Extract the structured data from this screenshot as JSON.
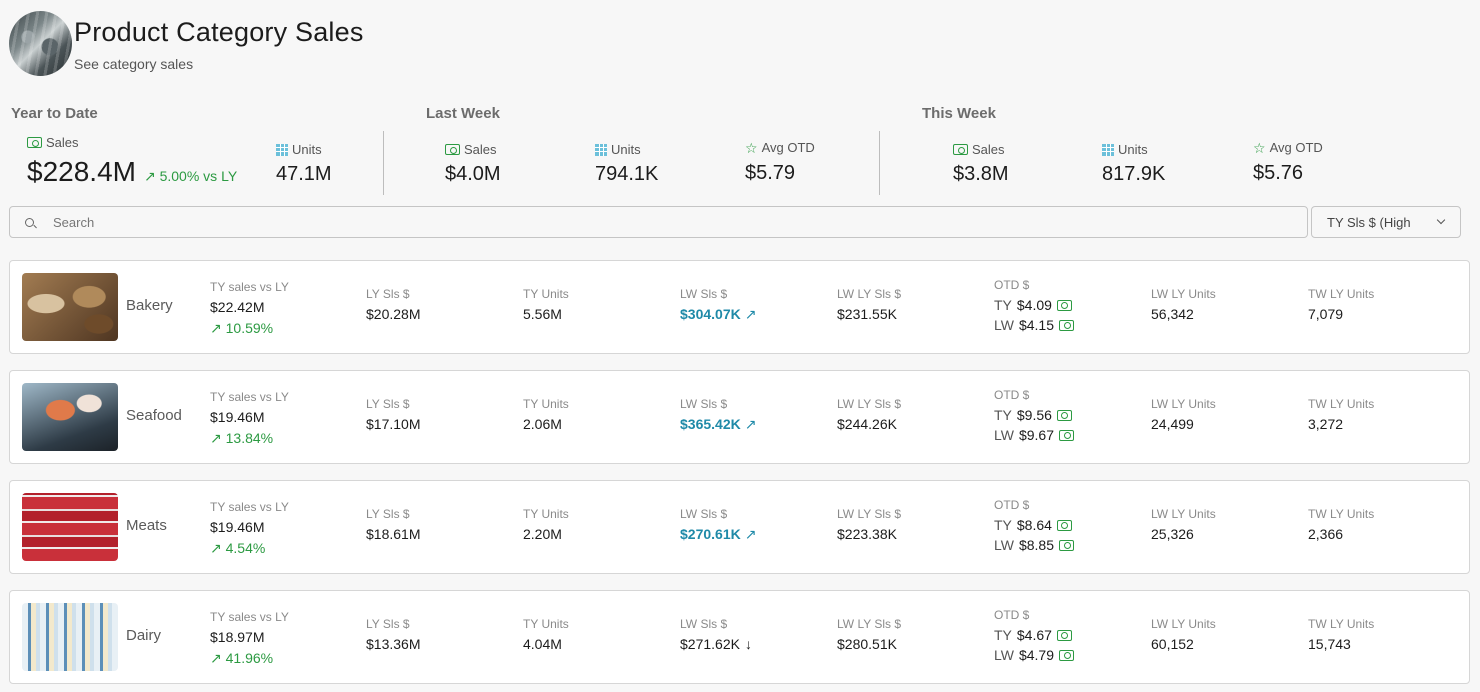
{
  "header": {
    "title": "Product Category Sales",
    "subtitle": "See category sales"
  },
  "kpis": {
    "ytd": {
      "label": "Year to Date",
      "sales_label": "Sales",
      "sales_value": "$228.4M",
      "sales_delta": "5.00% vs LY",
      "units_label": "Units",
      "units_value": "47.1M"
    },
    "last_week": {
      "label": "Last Week",
      "sales_label": "Sales",
      "sales_value": "$4.0M",
      "units_label": "Units",
      "units_value": "794.1K",
      "otd_label": "Avg OTD",
      "otd_value": "$5.79"
    },
    "this_week": {
      "label": "This Week",
      "sales_label": "Sales",
      "sales_value": "$3.8M",
      "units_label": "Units",
      "units_value": "817.9K",
      "otd_label": "Avg OTD",
      "otd_value": "$5.76"
    }
  },
  "search": {
    "placeholder": "Search"
  },
  "sort": {
    "selected": "TY Sls $ (High"
  },
  "labels": {
    "ty_vs_ly": "TY sales vs LY",
    "ly_sls": "LY Sls $",
    "ty_units": "TY Units",
    "lw_sls": "LW Sls $",
    "lw_ly_sls": "LW LY Sls $",
    "otd": "OTD $",
    "ty": "TY",
    "lw": "LW",
    "lw_ly_units": "LW LY Units",
    "tw_ly_units": "TW LY Units"
  },
  "categories": [
    {
      "name": "Bakery",
      "ty_sales": "$22.42M",
      "ty_delta": "10.59%",
      "ly_sls": "$20.28M",
      "ty_units": "5.56M",
      "lw_sls": "$304.07K",
      "lw_trend": "up",
      "lw_ly_sls": "$231.55K",
      "otd_ty": "$4.09",
      "otd_lw": "$4.15",
      "lw_ly_units": "56,342",
      "tw_ly_units": "7,079"
    },
    {
      "name": "Seafood",
      "ty_sales": "$19.46M",
      "ty_delta": "13.84%",
      "ly_sls": "$17.10M",
      "ty_units": "2.06M",
      "lw_sls": "$365.42K",
      "lw_trend": "up",
      "lw_ly_sls": "$244.26K",
      "otd_ty": "$9.56",
      "otd_lw": "$9.67",
      "lw_ly_units": "24,499",
      "tw_ly_units": "3,272"
    },
    {
      "name": "Meats",
      "ty_sales": "$19.46M",
      "ty_delta": "4.54%",
      "ly_sls": "$18.61M",
      "ty_units": "2.20M",
      "lw_sls": "$270.61K",
      "lw_trend": "up",
      "lw_ly_sls": "$223.38K",
      "otd_ty": "$8.64",
      "otd_lw": "$8.85",
      "lw_ly_units": "25,326",
      "tw_ly_units": "2,366"
    },
    {
      "name": "Dairy",
      "ty_sales": "$18.97M",
      "ty_delta": "41.96%",
      "ly_sls": "$13.36M",
      "ty_units": "4.04M",
      "lw_sls": "$271.62K",
      "lw_trend": "down",
      "lw_ly_sls": "$280.51K",
      "otd_ty": "$4.67",
      "otd_lw": "$4.79",
      "lw_ly_units": "60,152",
      "tw_ly_units": "15,743"
    }
  ],
  "colors": {
    "positive": "#2c9a42",
    "teal": "#1f8aa8",
    "units_icon": "#6cc0da"
  },
  "icons": {
    "sales": "money-icon",
    "units": "grid-icon",
    "otd": "star-icon",
    "trend_up": "arrow-up-right-icon",
    "trend_down": "arrow-down-icon"
  }
}
